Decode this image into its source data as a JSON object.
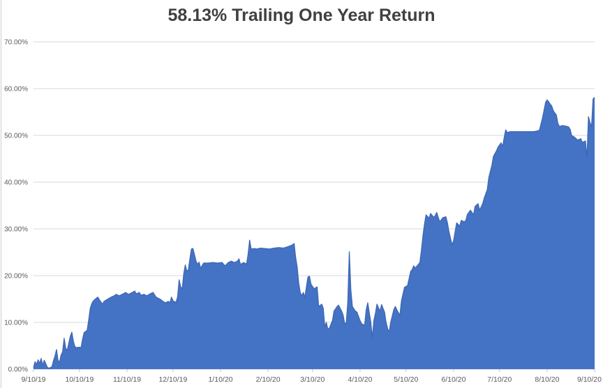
{
  "chart_data": {
    "type": "area",
    "title": "58.13% Trailing One Year Return",
    "series_name": "Trailing One Year Return",
    "final_value_pct": 58.13,
    "legend": "none",
    "grid": "horizontal",
    "x_axis": {
      "tick_labels": [
        "9/10/19",
        "10/10/19",
        "11/10/19",
        "12/10/19",
        "1/10/20",
        "2/10/20",
        "3/10/20",
        "4/10/20",
        "5/10/20",
        "6/10/20",
        "7/10/20",
        "8/10/20",
        "9/10/20"
      ],
      "tick_days": [
        0,
        30,
        61,
        91,
        122,
        153,
        182,
        213,
        243,
        274,
        304,
        335,
        366
      ],
      "domain_days": [
        0,
        366
      ]
    },
    "y_axis": {
      "tick_labels": [
        "0.00%",
        "10.00%",
        "20.00%",
        "30.00%",
        "40.00%",
        "50.00%",
        "60.00%",
        "70.00%"
      ],
      "tick_values": [
        0,
        10,
        20,
        30,
        40,
        50,
        60,
        70
      ],
      "min": 0,
      "max": 70,
      "unit": "%"
    },
    "points_day_pct": [
      [
        0,
        0.3
      ],
      [
        1,
        1.6
      ],
      [
        2,
        1.0
      ],
      [
        3,
        2.0
      ],
      [
        4,
        1.2
      ],
      [
        5,
        2.3
      ],
      [
        6,
        0.8
      ],
      [
        7,
        1.9
      ],
      [
        9,
        0.4
      ],
      [
        10,
        0.2
      ],
      [
        12,
        0.5
      ],
      [
        13,
        1.8
      ],
      [
        14,
        2.8
      ],
      [
        15,
        4.2
      ],
      [
        16,
        1.9
      ],
      [
        17,
        1.5
      ],
      [
        18,
        3.0
      ],
      [
        19,
        3.7
      ],
      [
        20,
        6.6
      ],
      [
        21,
        4.5
      ],
      [
        22,
        4.0
      ],
      [
        24,
        7.0
      ],
      [
        25,
        7.9
      ],
      [
        26,
        6.0
      ],
      [
        27,
        4.8
      ],
      [
        28,
        4.6
      ],
      [
        30,
        4.7
      ],
      [
        31,
        4.6
      ],
      [
        32,
        6.4
      ],
      [
        33,
        7.8
      ],
      [
        35,
        8.3
      ],
      [
        36,
        10.5
      ],
      [
        37,
        13.0
      ],
      [
        38,
        14.0
      ],
      [
        39,
        14.6
      ],
      [
        41,
        15.2
      ],
      [
        42,
        15.4
      ],
      [
        43,
        14.8
      ],
      [
        45,
        13.9
      ],
      [
        46,
        14.5
      ],
      [
        48,
        14.9
      ],
      [
        50,
        15.3
      ],
      [
        52,
        15.6
      ],
      [
        54,
        16.0
      ],
      [
        56,
        15.7
      ],
      [
        59,
        16.2
      ],
      [
        60,
        16.4
      ],
      [
        62,
        16.0
      ],
      [
        65,
        16.5
      ],
      [
        66,
        16.7
      ],
      [
        67,
        16.1
      ],
      [
        69,
        16.4
      ],
      [
        70,
        15.8
      ],
      [
        72,
        16.0
      ],
      [
        74,
        15.7
      ],
      [
        76,
        16.1
      ],
      [
        78,
        16.4
      ],
      [
        80,
        15.4
      ],
      [
        83,
        14.9
      ],
      [
        84,
        14.6
      ],
      [
        86,
        14.2
      ],
      [
        88,
        14.5
      ],
      [
        89,
        14.2
      ],
      [
        90,
        15.4
      ],
      [
        91,
        14.6
      ],
      [
        93,
        14.3
      ],
      [
        94,
        15.5
      ],
      [
        95,
        19.1
      ],
      [
        96,
        17.6
      ],
      [
        97,
        17.2
      ],
      [
        98,
        20.4
      ],
      [
        99,
        22.3
      ],
      [
        100,
        20.9
      ],
      [
        101,
        21.3
      ],
      [
        102,
        23.6
      ],
      [
        103,
        25.7
      ],
      [
        104,
        25.8
      ],
      [
        106,
        23.1
      ],
      [
        107,
        22.4
      ],
      [
        108,
        22.9
      ],
      [
        109,
        21.6
      ],
      [
        111,
        22.7
      ],
      [
        114,
        22.7
      ],
      [
        117,
        22.8
      ],
      [
        120,
        22.7
      ],
      [
        123,
        22.8
      ],
      [
        125,
        22.1
      ],
      [
        127,
        22.8
      ],
      [
        129,
        23.1
      ],
      [
        131,
        22.8
      ],
      [
        133,
        23.1
      ],
      [
        134,
        23.6
      ],
      [
        135,
        22.4
      ],
      [
        137,
        22.8
      ],
      [
        139,
        22.5
      ],
      [
        140,
        24.6
      ],
      [
        141,
        27.6
      ],
      [
        142,
        25.7
      ],
      [
        144,
        25.8
      ],
      [
        146,
        25.7
      ],
      [
        148,
        25.9
      ],
      [
        151,
        25.8
      ],
      [
        154,
        25.7
      ],
      [
        157,
        25.9
      ],
      [
        160,
        26.0
      ],
      [
        163,
        25.9
      ],
      [
        166,
        26.2
      ],
      [
        169,
        26.6
      ],
      [
        170,
        26.9
      ],
      [
        171,
        23.9
      ],
      [
        172,
        21.9
      ],
      [
        173,
        18.4
      ],
      [
        174,
        16.4
      ],
      [
        175,
        15.7
      ],
      [
        176,
        16.4
      ],
      [
        177,
        15.4
      ],
      [
        179,
        19.7
      ],
      [
        180,
        19.9
      ],
      [
        181,
        18.2
      ],
      [
        183,
        17.2
      ],
      [
        185,
        17.6
      ],
      [
        186,
        13.4
      ],
      [
        188,
        13.9
      ],
      [
        189,
        13.0
      ],
      [
        190,
        9.0
      ],
      [
        191,
        10.0
      ],
      [
        192,
        8.5
      ],
      [
        193,
        8.8
      ],
      [
        195,
        10.4
      ],
      [
        196,
        12.4
      ],
      [
        198,
        13.4
      ],
      [
        199,
        13.7
      ],
      [
        201,
        12.4
      ],
      [
        202,
        11.5
      ],
      [
        203,
        9.7
      ],
      [
        204,
        9.9
      ],
      [
        205,
        14.2
      ],
      [
        206,
        25.1
      ],
      [
        207,
        17.0
      ],
      [
        208,
        13.4
      ],
      [
        210,
        12.4
      ],
      [
        211,
        12.2
      ],
      [
        213,
        10.4
      ],
      [
        214,
        9.7
      ],
      [
        216,
        9.4
      ],
      [
        217,
        12.7
      ],
      [
        218,
        14.2
      ],
      [
        220,
        10.0
      ],
      [
        221,
        6.7
      ],
      [
        222,
        10.4
      ],
      [
        223,
        11.9
      ],
      [
        224,
        13.9
      ],
      [
        226,
        12.4
      ],
      [
        227,
        13.8
      ],
      [
        229,
        12.2
      ],
      [
        230,
        10.0
      ],
      [
        231,
        8.7
      ],
      [
        232,
        7.9
      ],
      [
        233,
        10.0
      ],
      [
        235,
        12.7
      ],
      [
        236,
        13.4
      ],
      [
        237,
        12.7
      ],
      [
        239,
        11.5
      ],
      [
        240,
        14.6
      ],
      [
        242,
        17.5
      ],
      [
        244,
        17.9
      ],
      [
        245,
        19.4
      ],
      [
        246,
        20.9
      ],
      [
        247,
        21.3
      ],
      [
        248,
        22.1
      ],
      [
        249,
        21.6
      ],
      [
        251,
        22.4
      ],
      [
        252,
        22.8
      ],
      [
        253,
        25.4
      ],
      [
        254,
        28.5
      ],
      [
        255,
        31.0
      ],
      [
        256,
        33.0
      ],
      [
        258,
        32.3
      ],
      [
        259,
        33.3
      ],
      [
        261,
        32.5
      ],
      [
        262,
        32.8
      ],
      [
        263,
        33.5
      ],
      [
        265,
        31.5
      ],
      [
        267,
        32.4
      ],
      [
        269,
        32.6
      ],
      [
        270,
        31.3
      ],
      [
        271,
        29.4
      ],
      [
        273,
        26.6
      ],
      [
        274,
        27.5
      ],
      [
        276,
        31.3
      ],
      [
        278,
        30.6
      ],
      [
        279,
        31.8
      ],
      [
        281,
        31.5
      ],
      [
        282,
        31.8
      ],
      [
        283,
        33.1
      ],
      [
        285,
        34.0
      ],
      [
        287,
        33.0
      ],
      [
        288,
        34.8
      ],
      [
        290,
        35.4
      ],
      [
        291,
        34.0
      ],
      [
        293,
        35.4
      ],
      [
        294,
        36.6
      ],
      [
        296,
        38.4
      ],
      [
        297,
        41.0
      ],
      [
        299,
        43.6
      ],
      [
        300,
        45.5
      ],
      [
        302,
        46.7
      ],
      [
        303,
        47.5
      ],
      [
        305,
        48.4
      ],
      [
        306,
        47.6
      ],
      [
        307,
        49.5
      ],
      [
        308,
        51.2
      ],
      [
        309,
        50.6
      ],
      [
        311,
        50.8
      ],
      [
        314,
        50.8
      ],
      [
        317,
        50.8
      ],
      [
        320,
        50.8
      ],
      [
        323,
        50.8
      ],
      [
        326,
        50.8
      ],
      [
        328,
        50.9
      ],
      [
        330,
        51.1
      ],
      [
        332,
        53.7
      ],
      [
        334,
        57.0
      ],
      [
        335,
        57.6
      ],
      [
        336,
        57.2
      ],
      [
        337,
        56.7
      ],
      [
        338,
        56.3
      ],
      [
        339,
        55.3
      ],
      [
        340,
        54.8
      ],
      [
        341,
        54.4
      ],
      [
        342,
        52.6
      ],
      [
        343,
        51.9
      ],
      [
        345,
        52.1
      ],
      [
        347,
        52.0
      ],
      [
        349,
        51.8
      ],
      [
        350,
        51.3
      ],
      [
        351,
        50.0
      ],
      [
        353,
        49.6
      ],
      [
        354,
        49.3
      ],
      [
        355,
        49.0
      ],
      [
        357,
        49.3
      ],
      [
        358,
        48.5
      ],
      [
        360,
        48.8
      ],
      [
        361,
        45.2
      ],
      [
        362,
        54.0
      ],
      [
        363,
        52.7
      ],
      [
        364,
        51.9
      ],
      [
        365,
        57.8
      ],
      [
        366,
        58.13
      ]
    ],
    "colors": {
      "area_fill": "#4472C4",
      "area_stroke": "#3E68B4",
      "gridline": "#D9D9D9",
      "axis_line": "#D9D9D9",
      "tick": "#BFBFBF",
      "label_text": "#595959",
      "title_text": "#404040",
      "background": "#FFFFFF",
      "frame_border": "#CCCCCC"
    }
  }
}
